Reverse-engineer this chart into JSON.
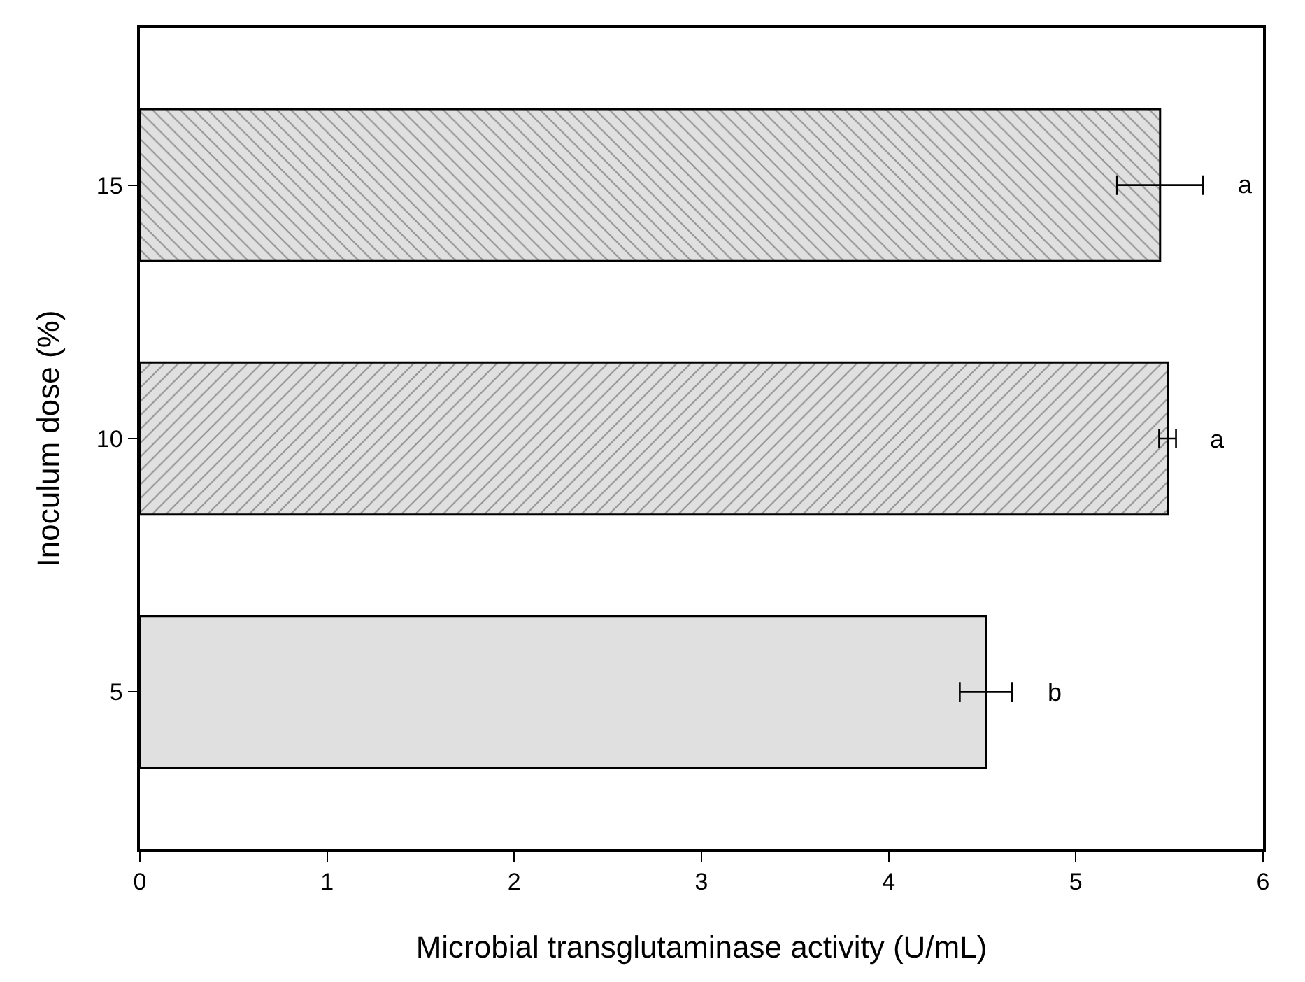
{
  "chart_data": {
    "type": "bar",
    "orientation": "horizontal",
    "xlabel": "Microbial transglutaminase activity (U/mL)",
    "ylabel": "Inoculum dose (%)",
    "categories": [
      "15",
      "10",
      "5"
    ],
    "values": [
      5.45,
      5.49,
      4.52
    ],
    "errors": [
      0.23,
      0.045,
      0.14
    ],
    "colors": [
      "#000000",
      "#000000",
      "#e0e0e0"
    ],
    "xlim": [
      0,
      6
    ],
    "xticks": [
      0,
      1,
      2,
      3,
      4,
      5,
      6
    ],
    "annotations": [
      "a",
      "a",
      "b"
    ]
  }
}
